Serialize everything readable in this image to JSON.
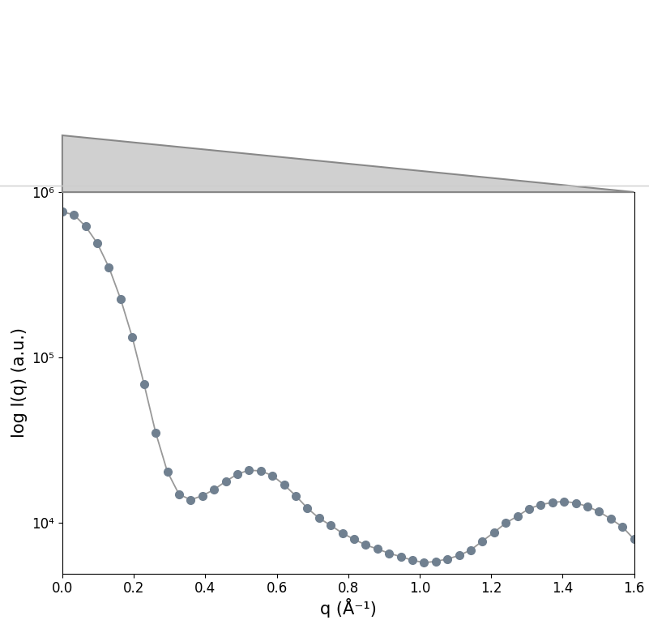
{
  "chart_data": {
    "type": "line",
    "log": "y",
    "grid": false,
    "x_label": "q (Å⁻¹)",
    "y_label": "log I(q) (a.u.)",
    "x": [
      0.0,
      0.0327,
      0.0653,
      0.098,
      0.1306,
      0.1633,
      0.1959,
      0.2286,
      0.2612,
      0.2939,
      0.3265,
      0.3592,
      0.3918,
      0.4245,
      0.4571,
      0.4898,
      0.5224,
      0.5551,
      0.5878,
      0.6204,
      0.6531,
      0.6857,
      0.7184,
      0.751,
      0.7837,
      0.8163,
      0.849,
      0.8816,
      0.9143,
      0.9469,
      0.9796,
      1.0122,
      1.0449,
      1.0776,
      1.1102,
      1.1429,
      1.1755,
      1.2082,
      1.2408,
      1.2735,
      1.3061,
      1.3388,
      1.3714,
      1.4041,
      1.4367,
      1.4694,
      1.502,
      1.5347,
      1.5673,
      1.6
    ],
    "values": [
      760000,
      730000,
      620000,
      490000,
      350000,
      225000,
      132000,
      69000,
      35000,
      20300,
      14800,
      13700,
      14500,
      15800,
      17700,
      19600,
      20700,
      20500,
      19200,
      16900,
      14500,
      12200,
      10600,
      9600,
      8600,
      7900,
      7300,
      6900,
      6500,
      6200,
      5900,
      5700,
      5800,
      6000,
      6300,
      6800,
      7700,
      8700,
      9900,
      10900,
      12100,
      12800,
      13200,
      13400,
      13100,
      12500,
      11600,
      10500,
      9400,
      7900
    ],
    "color": "#708090",
    "marker": "circle",
    "line_style": "solid",
    "xlim": [
      0,
      1.6
    ],
    "xticks": [
      0.0,
      0.2,
      0.4,
      0.6,
      0.8,
      1.0,
      1.2,
      1.4,
      1.6
    ],
    "ylim": [
      4900,
      1000000
    ],
    "yticks": [
      {
        "value": 10000,
        "label": "10⁴"
      },
      {
        "value": 100000,
        "label": "10⁵"
      },
      {
        "value": 1000000,
        "label": "10⁶"
      }
    ]
  }
}
